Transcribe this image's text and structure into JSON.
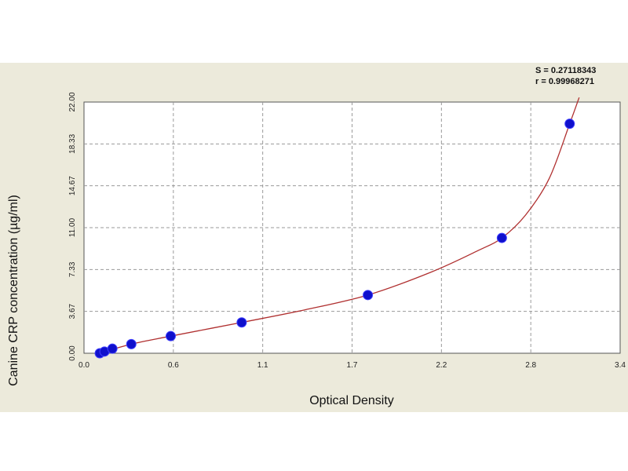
{
  "chart_data": {
    "type": "scatter",
    "title": "",
    "xlabel": "Optical Density",
    "ylabel": "Canine CRP concentration (µg/ml)",
    "xlim": [
      0.0,
      3.4
    ],
    "ylim": [
      0.0,
      22.0
    ],
    "x_ticks": [
      "0.0",
      "0.6",
      "1.1",
      "1.7",
      "2.2",
      "2.8",
      "3.4"
    ],
    "y_ticks": [
      "0.00",
      "3.67",
      "7.33",
      "11.00",
      "14.67",
      "18.33",
      "22.00"
    ],
    "grid": true,
    "stats": [
      "S = 0.27118343",
      "r = 0.99968271"
    ],
    "colors": {
      "curve": "#b03030",
      "points": "#1010cc",
      "background": "#eceadb",
      "plot_area": "#ffffff"
    },
    "series": [
      {
        "name": "",
        "kind": "points",
        "x": [
          0.1,
          0.13,
          0.18,
          0.3,
          0.55,
          1.0,
          1.8,
          2.65,
          3.08
        ],
        "y": [
          0.0,
          0.15,
          0.4,
          0.8,
          1.5,
          2.7,
          5.1,
          10.1,
          20.1
        ]
      },
      {
        "name": "",
        "kind": "fit-curve",
        "x": [
          0.1,
          0.3,
          0.55,
          1.0,
          1.4,
          1.8,
          2.2,
          2.5,
          2.65,
          2.8,
          2.95,
          3.08,
          3.14
        ],
        "y": [
          0.0,
          0.8,
          1.5,
          2.7,
          3.8,
          5.1,
          7.1,
          9.0,
          10.1,
          12.1,
          15.3,
          20.1,
          22.4
        ]
      }
    ]
  }
}
